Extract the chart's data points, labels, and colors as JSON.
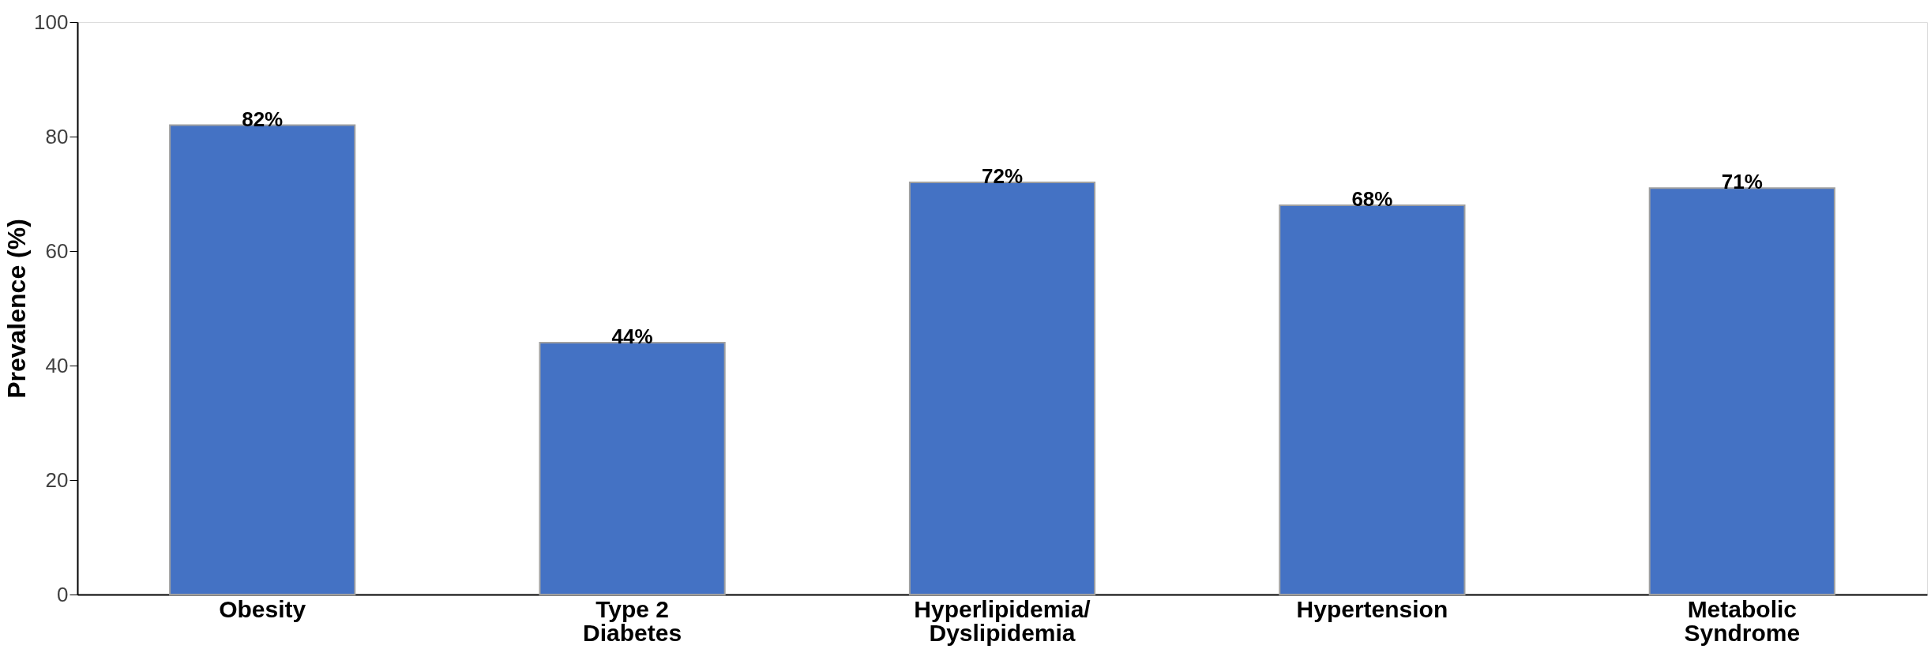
{
  "chart_data": {
    "type": "bar",
    "ylabel": "Prevalence (%)",
    "categories": [
      "Obesity",
      "Type 2\nDiabetes",
      "Hyperlipidemia/\nDyslipidemia",
      "Hypertension",
      "Metabolic\nSyndrome"
    ],
    "values": [
      82,
      44,
      72,
      68,
      71
    ],
    "value_labels": [
      "82%",
      "44%",
      "72%",
      "68%",
      "71%"
    ],
    "color": "#4472c4",
    "ylim": [
      0,
      100
    ],
    "yticks": [
      0,
      20,
      40,
      60,
      80,
      100
    ],
    "grid": false
  }
}
